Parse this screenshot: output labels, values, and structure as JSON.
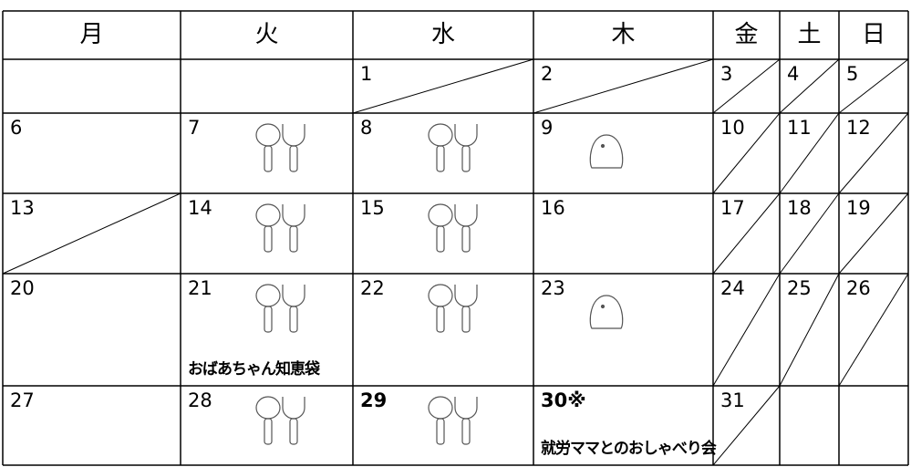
{
  "table": {
    "headers": [
      "月",
      "火",
      "水",
      "木",
      "金",
      "土",
      "日"
    ],
    "rows": [
      [
        null,
        null,
        {
          "day": "1"
        },
        {
          "day": "2"
        },
        {
          "day": "3"
        },
        {
          "day": "4"
        },
        {
          "day": "5"
        }
      ],
      [
        {
          "day": "6"
        },
        {
          "day": "7"
        },
        {
          "day": "8"
        },
        {
          "day": "9"
        },
        {
          "day": "10"
        },
        {
          "day": "11"
        },
        {
          "day": "12"
        }
      ],
      [
        {
          "day": "13"
        },
        {
          "day": "14"
        },
        {
          "day": "15"
        },
        {
          "day": "16"
        },
        {
          "day": "17"
        },
        {
          "day": "18"
        },
        {
          "day": "19"
        }
      ],
      [
        {
          "day": "20"
        },
        {
          "day": "21",
          "note": "おばあちゃん知恵袋"
        },
        {
          "day": "22"
        },
        {
          "day": "23"
        },
        {
          "day": "24"
        },
        {
          "day": "25"
        },
        {
          "day": "26"
        }
      ],
      [
        {
          "day": "27"
        },
        {
          "day": "28"
        },
        {
          "day": "29",
          "bold": true
        },
        {
          "day": "30※",
          "bold": true,
          "note": "就労ママとのおしゃべり会"
        },
        {
          "day": "31"
        },
        null,
        null
      ]
    ]
  }
}
